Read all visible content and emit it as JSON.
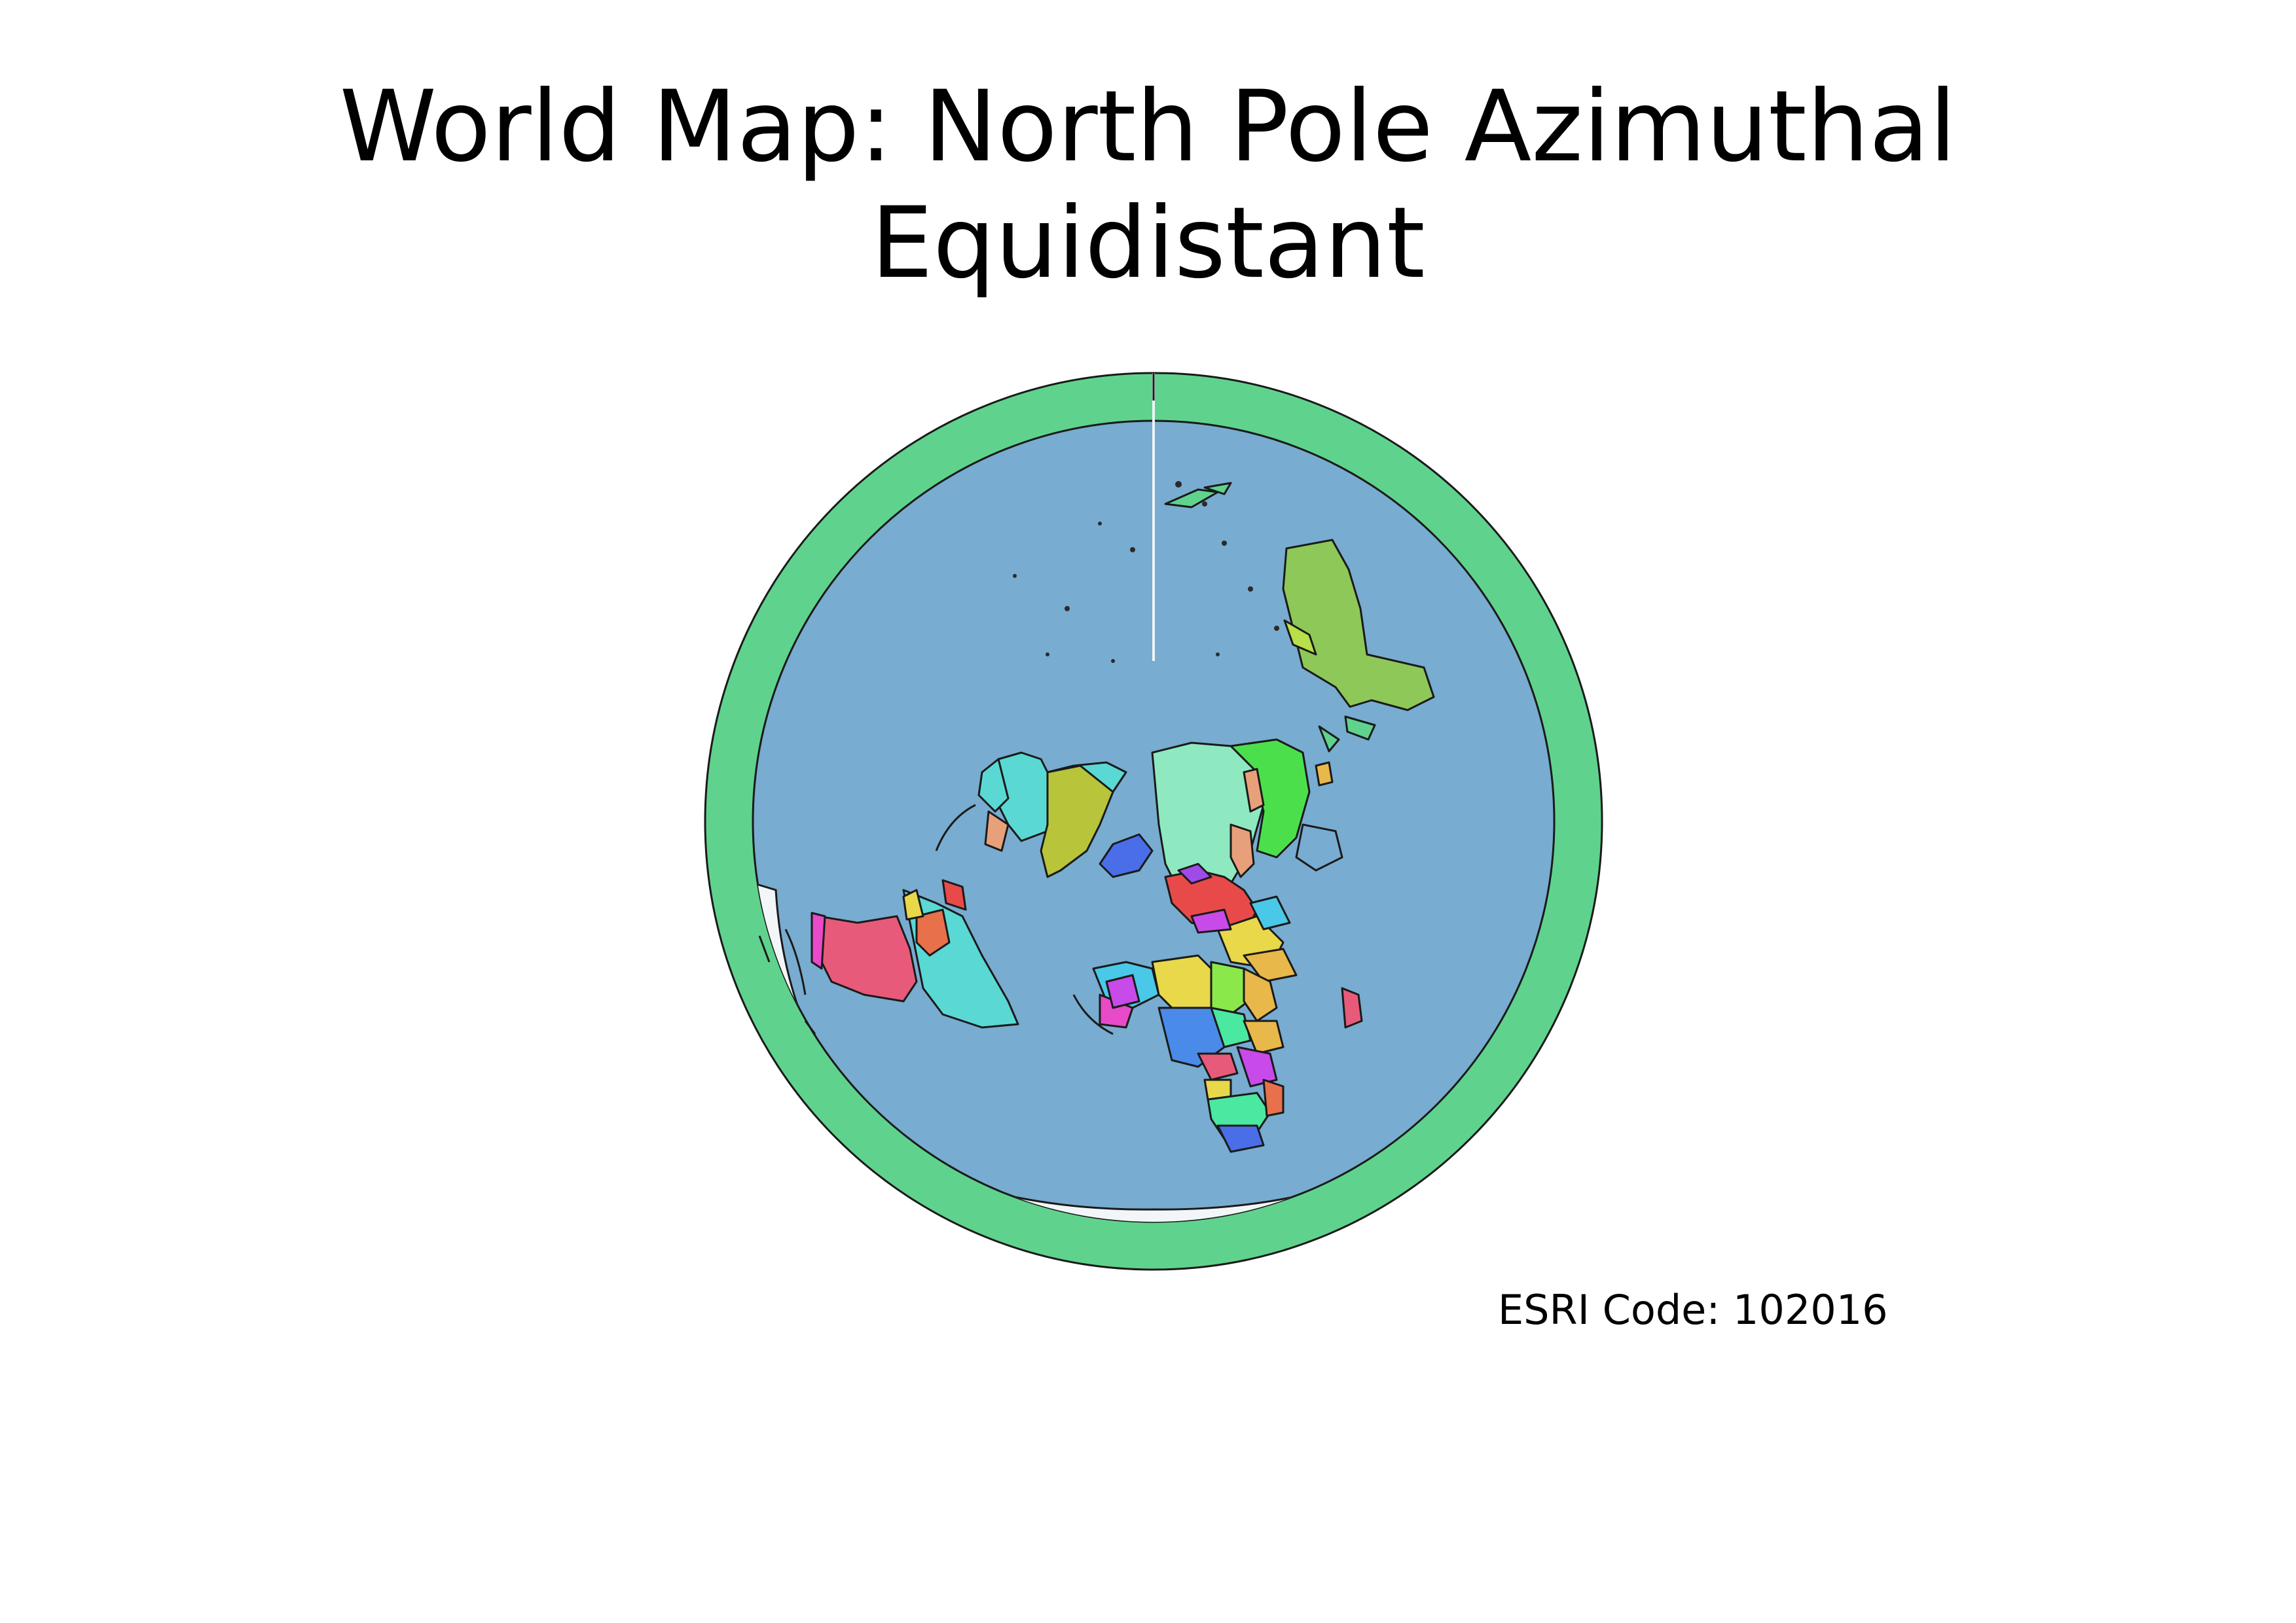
{
  "title": {
    "line1": "World Map: North Pole Azimuthal",
    "line2": "Equidistant"
  },
  "caption": "ESRI Code: 102016",
  "colors": {
    "outer_ring": "#5fd38d",
    "ocean": "#78acd0",
    "land_outline": "#1a1a1a",
    "ice": "#f2f6f8",
    "country_palette": [
      "#5ad8d4",
      "#b8c43a",
      "#e85a7a",
      "#4be04b",
      "#8ee8c0",
      "#e8a07a",
      "#e84ac8",
      "#4a6ee8",
      "#e8d84a",
      "#c84ae8",
      "#4ac8e8",
      "#e8704a",
      "#8ae84a",
      "#e84a4a",
      "#4ae8a0",
      "#a04ae8",
      "#e8b84a",
      "#4a8ae8"
    ]
  },
  "map": {
    "projection": "North Pole Azimuthal Equidistant",
    "center": "north-pole"
  }
}
